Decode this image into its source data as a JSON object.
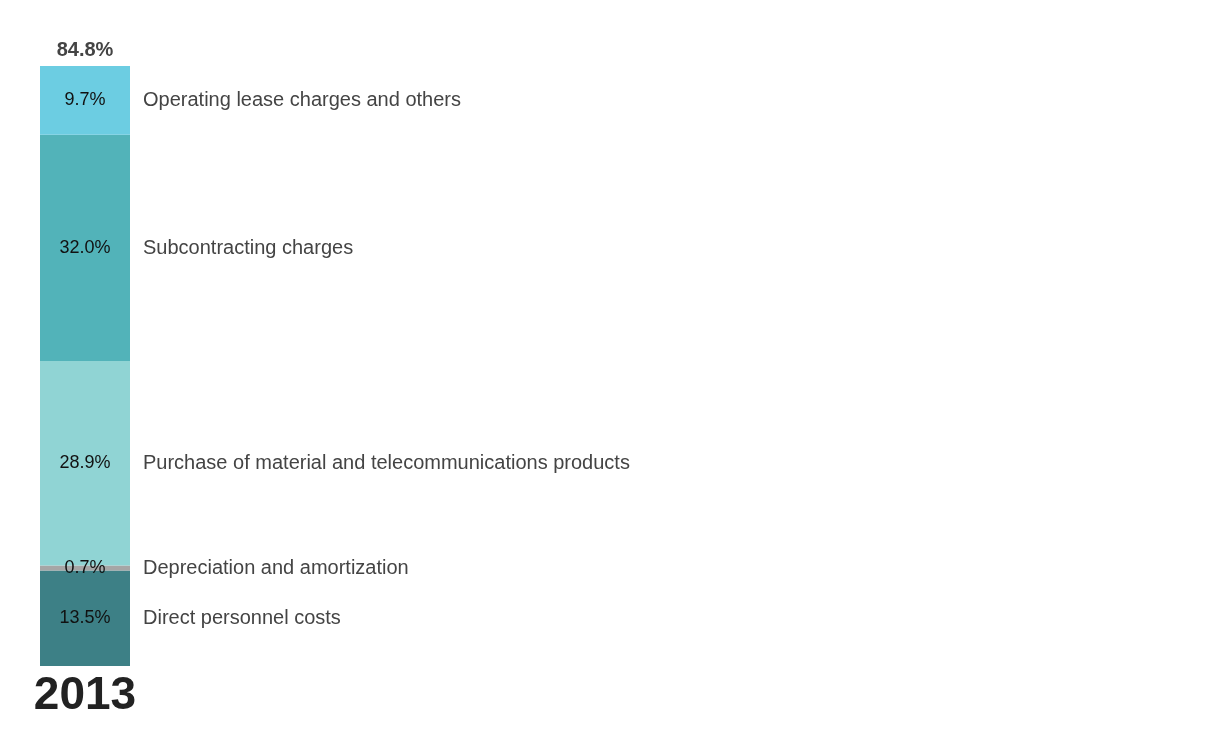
{
  "chart_data": {
    "type": "bar",
    "stacked": true,
    "categories": [
      "2013"
    ],
    "series": [
      {
        "name": "Direct personnel costs",
        "color": "#3d8086",
        "values": [
          13.5
        ],
        "value_labels": [
          "13.5%"
        ]
      },
      {
        "name": "Depreciation and amortization",
        "color": "#a6a6a6",
        "values": [
          0.7
        ],
        "value_labels": [
          "0.7%"
        ]
      },
      {
        "name": "Purchase of material and telecommunications products",
        "color": "#90d4d4",
        "values": [
          28.9
        ],
        "value_labels": [
          "28.9%"
        ]
      },
      {
        "name": "Subcontracting charges",
        "color": "#52b3b9",
        "values": [
          32.0
        ],
        "value_labels": [
          "32.0%"
        ]
      },
      {
        "name": "Operating lease charges and others",
        "color": "#6ccde2",
        "values": [
          9.7
        ],
        "value_labels": [
          "9.7%"
        ]
      }
    ],
    "totals": [
      "84.8%"
    ]
  }
}
